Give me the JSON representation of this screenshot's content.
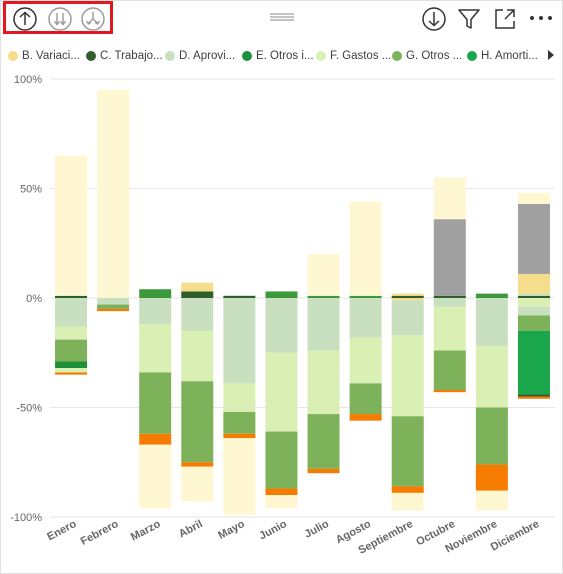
{
  "toolbar": {
    "left_icons": [
      "drill-up-icon",
      "drill-down-all-icon",
      "expand-next-level-icon"
    ],
    "right_icons": [
      "drill-mode-icon",
      "filter-icon",
      "focus-mode-icon",
      "more-options-icon"
    ],
    "highlight_color": "#e3181f"
  },
  "legend": {
    "items": [
      {
        "label": "B. Variaci...",
        "color": "#f6dd8b"
      },
      {
        "label": "C. Trabajo...",
        "color": "#2f5e2c"
      },
      {
        "label": "D. Aprovi...",
        "color": "#c8e0c0"
      },
      {
        "label": "E. Otros i...",
        "color": "#1f8f3a"
      },
      {
        "label": "F. Gastos ...",
        "color": "#d9efb4"
      },
      {
        "label": "G. Otros ...",
        "color": "#7db25a"
      },
      {
        "label": "H. Amorti...",
        "color": "#1aa64a"
      }
    ]
  },
  "chart_data": {
    "type": "bar",
    "stacked": true,
    "categories": [
      "Enero",
      "Febrero",
      "Marzo",
      "Abril",
      "Mayo",
      "Junio",
      "Julio",
      "Agosto",
      "Septiembre",
      "Octubre",
      "Noviembre",
      "Diciembre"
    ],
    "y_ticks": [
      "100%",
      "50%",
      "0%",
      "-50%",
      "-100%"
    ],
    "ylim": [
      -100,
      100
    ],
    "grid": true,
    "colors": {
      "B": "#f6dd8b",
      "C": "#2f5e2c",
      "D": "#c8e0c0",
      "E": "#1f8f3a",
      "F": "#d9efb4",
      "G": "#7db25a",
      "H": "#1aa64a",
      "orange": "#f57c00",
      "gray": "#a0a0a0",
      "pale": "#fff7d1",
      "green2": "#3c9a3c"
    },
    "bars": [
      {
        "pos": [
          [
            "C",
            1
          ],
          [
            "pale",
            64
          ]
        ],
        "neg": [
          [
            "D",
            13
          ],
          [
            "F",
            6
          ],
          [
            "G",
            10
          ],
          [
            "E",
            3
          ],
          [
            "F",
            2
          ],
          [
            "orange",
            1
          ]
        ]
      },
      {
        "pos": [
          [
            "pale",
            95
          ]
        ],
        "neg": [
          [
            "D",
            3
          ],
          [
            "G",
            2
          ],
          [
            "orange",
            1
          ]
        ]
      },
      {
        "pos": [
          [
            "green2",
            4
          ]
        ],
        "neg": [
          [
            "D",
            12
          ],
          [
            "F",
            22
          ],
          [
            "G",
            28
          ],
          [
            "orange",
            5
          ],
          [
            "pale",
            29
          ]
        ]
      },
      {
        "pos": [
          [
            "C",
            3
          ],
          [
            "B",
            4
          ]
        ],
        "neg": [
          [
            "D",
            15
          ],
          [
            "F",
            23
          ],
          [
            "G",
            37
          ],
          [
            "orange",
            2
          ],
          [
            "pale",
            16
          ]
        ]
      },
      {
        "pos": [
          [
            "C",
            1
          ]
        ],
        "neg": [
          [
            "D",
            39
          ],
          [
            "F",
            13
          ],
          [
            "G",
            10
          ],
          [
            "orange",
            2
          ],
          [
            "pale",
            35
          ]
        ]
      },
      {
        "pos": [
          [
            "green2",
            3
          ]
        ],
        "neg": [
          [
            "D",
            25
          ],
          [
            "F",
            36
          ],
          [
            "G",
            26
          ],
          [
            "orange",
            3
          ],
          [
            "pale",
            6
          ]
        ]
      },
      {
        "pos": [
          [
            "green2",
            1
          ],
          [
            "pale",
            19
          ]
        ],
        "neg": [
          [
            "D",
            24
          ],
          [
            "F",
            29
          ],
          [
            "G",
            25
          ],
          [
            "orange",
            2
          ]
        ]
      },
      {
        "pos": [
          [
            "green2",
            1
          ],
          [
            "pale",
            43
          ]
        ],
        "neg": [
          [
            "D",
            18
          ],
          [
            "F",
            21
          ],
          [
            "G",
            14
          ],
          [
            "orange",
            3
          ]
        ]
      },
      {
        "pos": [
          [
            "C",
            1
          ],
          [
            "B",
            1
          ]
        ],
        "neg": [
          [
            "B",
            1
          ],
          [
            "D",
            16
          ],
          [
            "F",
            37
          ],
          [
            "G",
            32
          ],
          [
            "orange",
            3
          ],
          [
            "pale",
            8
          ]
        ]
      },
      {
        "pos": [
          [
            "C",
            1
          ],
          [
            "gray",
            35
          ],
          [
            "pale",
            19
          ]
        ],
        "neg": [
          [
            "D",
            4
          ],
          [
            "F",
            20
          ],
          [
            "G",
            18
          ],
          [
            "orange",
            1
          ]
        ]
      },
      {
        "pos": [
          [
            "green2",
            2
          ]
        ],
        "neg": [
          [
            "D",
            22
          ],
          [
            "F",
            28
          ],
          [
            "G",
            26
          ],
          [
            "orange",
            12
          ],
          [
            "pale",
            9
          ]
        ]
      },
      {
        "pos": [
          [
            "C",
            1
          ],
          [
            "D",
            1
          ],
          [
            "B",
            9
          ],
          [
            "gray",
            32
          ],
          [
            "pale",
            5
          ]
        ],
        "neg": [
          [
            "F",
            4
          ],
          [
            "D",
            4
          ],
          [
            "G",
            7
          ],
          [
            "H",
            29
          ],
          [
            "C",
            1
          ],
          [
            "orange",
            1
          ]
        ]
      }
    ]
  }
}
